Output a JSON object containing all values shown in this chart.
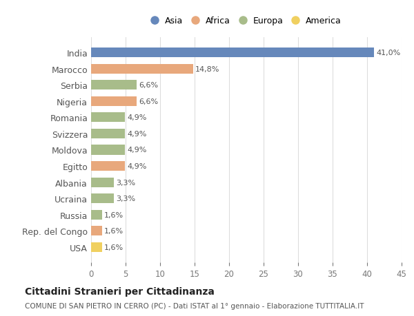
{
  "countries": [
    "India",
    "Marocco",
    "Serbia",
    "Nigeria",
    "Romania",
    "Svizzera",
    "Moldova",
    "Egitto",
    "Albania",
    "Ucraina",
    "Russia",
    "Rep. del Congo",
    "USA"
  ],
  "values": [
    41.0,
    14.8,
    6.6,
    6.6,
    4.9,
    4.9,
    4.9,
    4.9,
    3.3,
    3.3,
    1.6,
    1.6,
    1.6
  ],
  "continents": [
    "Asia",
    "Africa",
    "Europa",
    "Africa",
    "Europa",
    "Europa",
    "Europa",
    "Africa",
    "Europa",
    "Europa",
    "Europa",
    "Africa",
    "America"
  ],
  "colors": {
    "Asia": "#6688bb",
    "Africa": "#e8a87c",
    "Europa": "#a8bc8a",
    "America": "#f0d060"
  },
  "legend_order": [
    "Asia",
    "Africa",
    "Europa",
    "America"
  ],
  "xlim": [
    0,
    45
  ],
  "xticks": [
    0,
    5,
    10,
    15,
    20,
    25,
    30,
    35,
    40,
    45
  ],
  "title": "Cittadini Stranieri per Cittadinanza",
  "subtitle": "COMUNE DI SAN PIETRO IN CERRO (PC) - Dati ISTAT al 1° gennaio - Elaborazione TUTTITALIA.IT",
  "background_color": "#ffffff",
  "grid_color": "#dddddd"
}
